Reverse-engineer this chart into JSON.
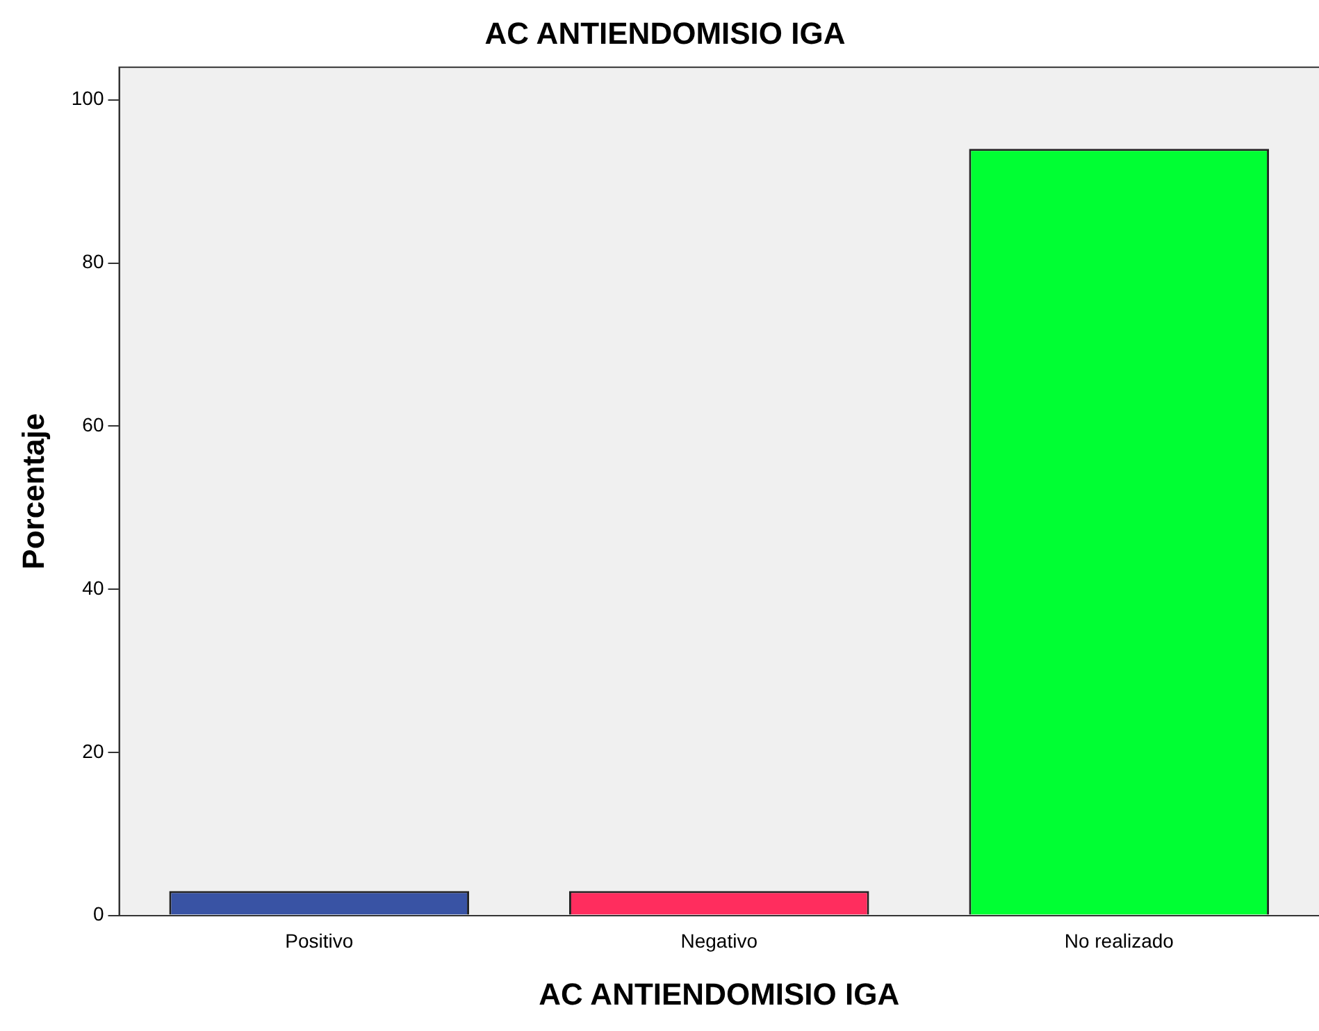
{
  "chart_data": {
    "type": "bar",
    "title": "AC ANTIENDOMISIO IGA",
    "xlabel": "AC ANTIENDOMISIO IGA",
    "ylabel": "Porcentaje",
    "categories": [
      "Positivo",
      "Negativo",
      "No realizado"
    ],
    "values": [
      3,
      3,
      94
    ],
    "colors": [
      "#3953a4",
      "#ff2d5e",
      "#00ff33"
    ],
    "ylim": [
      0,
      104
    ],
    "yticks": [
      0,
      20,
      40,
      60,
      80,
      100
    ],
    "grid": false,
    "legend": false
  }
}
